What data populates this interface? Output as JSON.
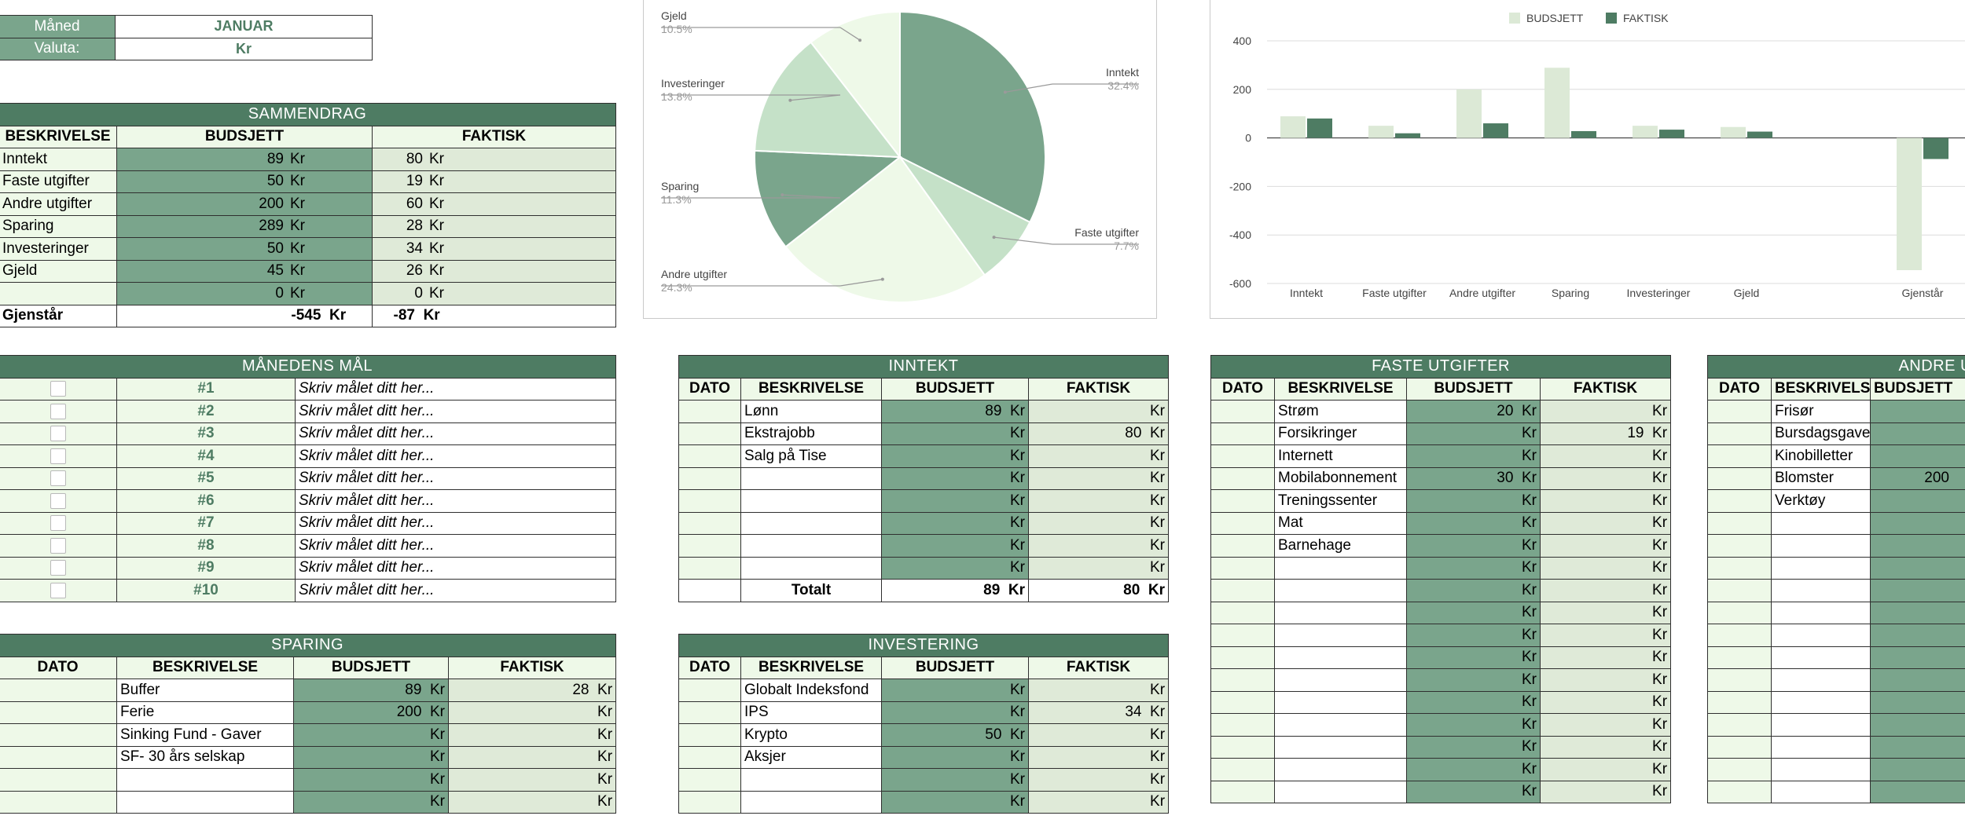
{
  "meta": {
    "month_label": "Måned",
    "month_value": "JANUAR",
    "currency_label": "Valuta:",
    "currency_value": "Kr"
  },
  "summary": {
    "title": "SAMMENDRAG",
    "headers": [
      "BESKRIVELSE",
      "BUDSJETT",
      "FAKTISK"
    ],
    "rows": [
      {
        "label": "Inntekt",
        "budget": "89",
        "actual": "80"
      },
      {
        "label": "Faste utgifter",
        "budget": "50",
        "actual": "19"
      },
      {
        "label": "Andre utgifter",
        "budget": "200",
        "actual": "60"
      },
      {
        "label": "Sparing",
        "budget": "289",
        "actual": "28"
      },
      {
        "label": "Investeringer",
        "budget": "50",
        "actual": "34"
      },
      {
        "label": "Gjeld",
        "budget": "45",
        "actual": "26"
      },
      {
        "label": "",
        "budget": "0",
        "actual": "0"
      }
    ],
    "total": {
      "label": "Gjenstår",
      "budget": "-545",
      "actual": "-87"
    },
    "currency": "Kr"
  },
  "goals": {
    "title": "MÅNEDENS MÅL",
    "items": [
      {
        "num": "#1",
        "text": "Skriv målet ditt her..."
      },
      {
        "num": "#2",
        "text": "Skriv målet ditt her..."
      },
      {
        "num": "#3",
        "text": "Skriv målet ditt her..."
      },
      {
        "num": "#4",
        "text": "Skriv målet ditt her..."
      },
      {
        "num": "#5",
        "text": "Skriv målet ditt her..."
      },
      {
        "num": "#6",
        "text": "Skriv målet ditt her..."
      },
      {
        "num": "#7",
        "text": "Skriv målet ditt her..."
      },
      {
        "num": "#8",
        "text": "Skriv målet ditt her..."
      },
      {
        "num": "#9",
        "text": "Skriv målet ditt her..."
      },
      {
        "num": "#10",
        "text": "Skriv målet ditt her..."
      }
    ]
  },
  "sparing": {
    "title": "SPARING",
    "headers": [
      "DATO",
      "BESKRIVELSE",
      "BUDSJETT",
      "FAKTISK"
    ],
    "rows": [
      {
        "date": "",
        "desc": "Buffer",
        "budget": "89",
        "actual": "28"
      },
      {
        "date": "",
        "desc": "Ferie",
        "budget": "200",
        "actual": ""
      },
      {
        "date": "",
        "desc": "Sinking Fund - Gaver",
        "budget": "",
        "actual": ""
      },
      {
        "date": "",
        "desc": "SF- 30 års selskap",
        "budget": "",
        "actual": ""
      },
      {
        "date": "",
        "desc": "",
        "budget": "",
        "actual": ""
      },
      {
        "date": "",
        "desc": "",
        "budget": "",
        "actual": ""
      }
    ]
  },
  "inntekt": {
    "title": "INNTEKT",
    "headers": [
      "DATO",
      "BESKRIVELSE",
      "BUDSJETT",
      "FAKTISK"
    ],
    "rows": [
      {
        "date": "",
        "desc": "Lønn",
        "budget": "89",
        "actual": ""
      },
      {
        "date": "",
        "desc": "Ekstrajobb",
        "budget": "",
        "actual": "80"
      },
      {
        "date": "",
        "desc": "Salg på Tise",
        "budget": "",
        "actual": ""
      },
      {
        "date": "",
        "desc": "",
        "budget": "",
        "actual": ""
      },
      {
        "date": "",
        "desc": "",
        "budget": "",
        "actual": ""
      },
      {
        "date": "",
        "desc": "",
        "budget": "",
        "actual": ""
      },
      {
        "date": "",
        "desc": "",
        "budget": "",
        "actual": ""
      },
      {
        "date": "",
        "desc": "",
        "budget": "",
        "actual": ""
      }
    ],
    "total": {
      "label": "Totalt",
      "budget": "89",
      "actual": "80"
    }
  },
  "investering": {
    "title": "INVESTERING",
    "headers": [
      "DATO",
      "BESKRIVELSE",
      "BUDSJETT",
      "FAKTISK"
    ],
    "rows": [
      {
        "date": "",
        "desc": "Globalt Indeksfond",
        "budget": "",
        "actual": ""
      },
      {
        "date": "",
        "desc": "IPS",
        "budget": "",
        "actual": "34"
      },
      {
        "date": "",
        "desc": "Krypto",
        "budget": "50",
        "actual": ""
      },
      {
        "date": "",
        "desc": "Aksjer",
        "budget": "",
        "actual": ""
      },
      {
        "date": "",
        "desc": "",
        "budget": "",
        "actual": ""
      },
      {
        "date": "",
        "desc": "",
        "budget": "",
        "actual": ""
      }
    ]
  },
  "faste": {
    "title": "FASTE UTGIFTER",
    "headers": [
      "DATO",
      "BESKRIVELSE",
      "BUDSJETT",
      "FAKTISK"
    ],
    "rows": [
      {
        "date": "",
        "desc": "Strøm",
        "budget": "20",
        "actual": ""
      },
      {
        "date": "",
        "desc": "Forsikringer",
        "budget": "",
        "actual": "19"
      },
      {
        "date": "",
        "desc": "Internett",
        "budget": "",
        "actual": ""
      },
      {
        "date": "",
        "desc": "Mobilabonnement",
        "budget": "30",
        "actual": ""
      },
      {
        "date": "",
        "desc": "Treningssenter",
        "budget": "",
        "actual": ""
      },
      {
        "date": "",
        "desc": "Mat",
        "budget": "",
        "actual": ""
      },
      {
        "date": "",
        "desc": "Barnehage",
        "budget": "",
        "actual": ""
      },
      {
        "date": "",
        "desc": "",
        "budget": "",
        "actual": ""
      },
      {
        "date": "",
        "desc": "",
        "budget": "",
        "actual": ""
      },
      {
        "date": "",
        "desc": "",
        "budget": "",
        "actual": ""
      },
      {
        "date": "",
        "desc": "",
        "budget": "",
        "actual": ""
      },
      {
        "date": "",
        "desc": "",
        "budget": "",
        "actual": ""
      },
      {
        "date": "",
        "desc": "",
        "budget": "",
        "actual": ""
      },
      {
        "date": "",
        "desc": "",
        "budget": "",
        "actual": ""
      },
      {
        "date": "",
        "desc": "",
        "budget": "",
        "actual": ""
      },
      {
        "date": "",
        "desc": "",
        "budget": "",
        "actual": ""
      },
      {
        "date": "",
        "desc": "",
        "budget": "",
        "actual": ""
      },
      {
        "date": "",
        "desc": "",
        "budget": "",
        "actual": ""
      }
    ]
  },
  "andre": {
    "title": "ANDRE UTGIFTER",
    "headers": [
      "DATO",
      "BESKRIVELSE",
      "BUDSJETT"
    ],
    "rows": [
      {
        "date": "",
        "desc": "Frisør",
        "budget": ""
      },
      {
        "date": "",
        "desc": "Bursdagsgave",
        "budget": ""
      },
      {
        "date": "",
        "desc": "Kinobilletter",
        "budget": ""
      },
      {
        "date": "",
        "desc": "Blomster",
        "budget": "200"
      },
      {
        "date": "",
        "desc": "Verktøy",
        "budget": ""
      },
      {
        "date": "",
        "desc": "",
        "budget": ""
      },
      {
        "date": "",
        "desc": "",
        "budget": ""
      },
      {
        "date": "",
        "desc": "",
        "budget": ""
      },
      {
        "date": "",
        "desc": "",
        "budget": ""
      },
      {
        "date": "",
        "desc": "",
        "budget": ""
      },
      {
        "date": "",
        "desc": "",
        "budget": ""
      },
      {
        "date": "",
        "desc": "",
        "budget": ""
      },
      {
        "date": "",
        "desc": "",
        "budget": ""
      },
      {
        "date": "",
        "desc": "",
        "budget": ""
      },
      {
        "date": "",
        "desc": "",
        "budget": ""
      },
      {
        "date": "",
        "desc": "",
        "budget": ""
      },
      {
        "date": "",
        "desc": "",
        "budget": ""
      },
      {
        "date": "",
        "desc": "",
        "budget": ""
      }
    ]
  },
  "colors": {
    "header_green": "#4e7c63",
    "budget_green": "#7aa58c",
    "actual_green": "#dfead8",
    "label_green": "#eef9e8"
  },
  "chart_data": [
    {
      "type": "pie",
      "title": "",
      "slices": [
        {
          "label": "Inntekt",
          "value": 32.4,
          "display": "32.4%",
          "color": "#7aa58c"
        },
        {
          "label": "Faste utgifter",
          "value": 7.7,
          "display": "7.7%",
          "color": "#c5e1c8"
        },
        {
          "label": "Andre utgifter",
          "value": 24.3,
          "display": "24.3%",
          "color": "#eef9e8"
        },
        {
          "label": "Sparing",
          "value": 11.3,
          "display": "11.3%",
          "color": "#7aa58c"
        },
        {
          "label": "Investeringer",
          "value": 13.8,
          "display": "13.8%",
          "color": "#c5e1c8"
        },
        {
          "label": "Gjeld",
          "value": 10.5,
          "display": "10.5%",
          "color": "#eef9e8"
        }
      ]
    },
    {
      "type": "bar",
      "title": "",
      "categories": [
        "Inntekt",
        "Faste utgifter",
        "Andre utgifter",
        "Sparing",
        "Investeringer",
        "Gjeld",
        "",
        "Gjenstår"
      ],
      "series": [
        {
          "name": "BUDSJETT",
          "color": "#dce9d6",
          "values": [
            89,
            50,
            200,
            289,
            50,
            45,
            0,
            -545
          ]
        },
        {
          "name": "FAKTISK",
          "color": "#4e7c63",
          "values": [
            80,
            19,
            60,
            28,
            34,
            26,
            0,
            -87
          ]
        }
      ],
      "ylim": [
        -600,
        400
      ],
      "yticks": [
        400,
        200,
        0,
        -200,
        -400,
        -600
      ],
      "legend": "top",
      "grid": true
    }
  ]
}
